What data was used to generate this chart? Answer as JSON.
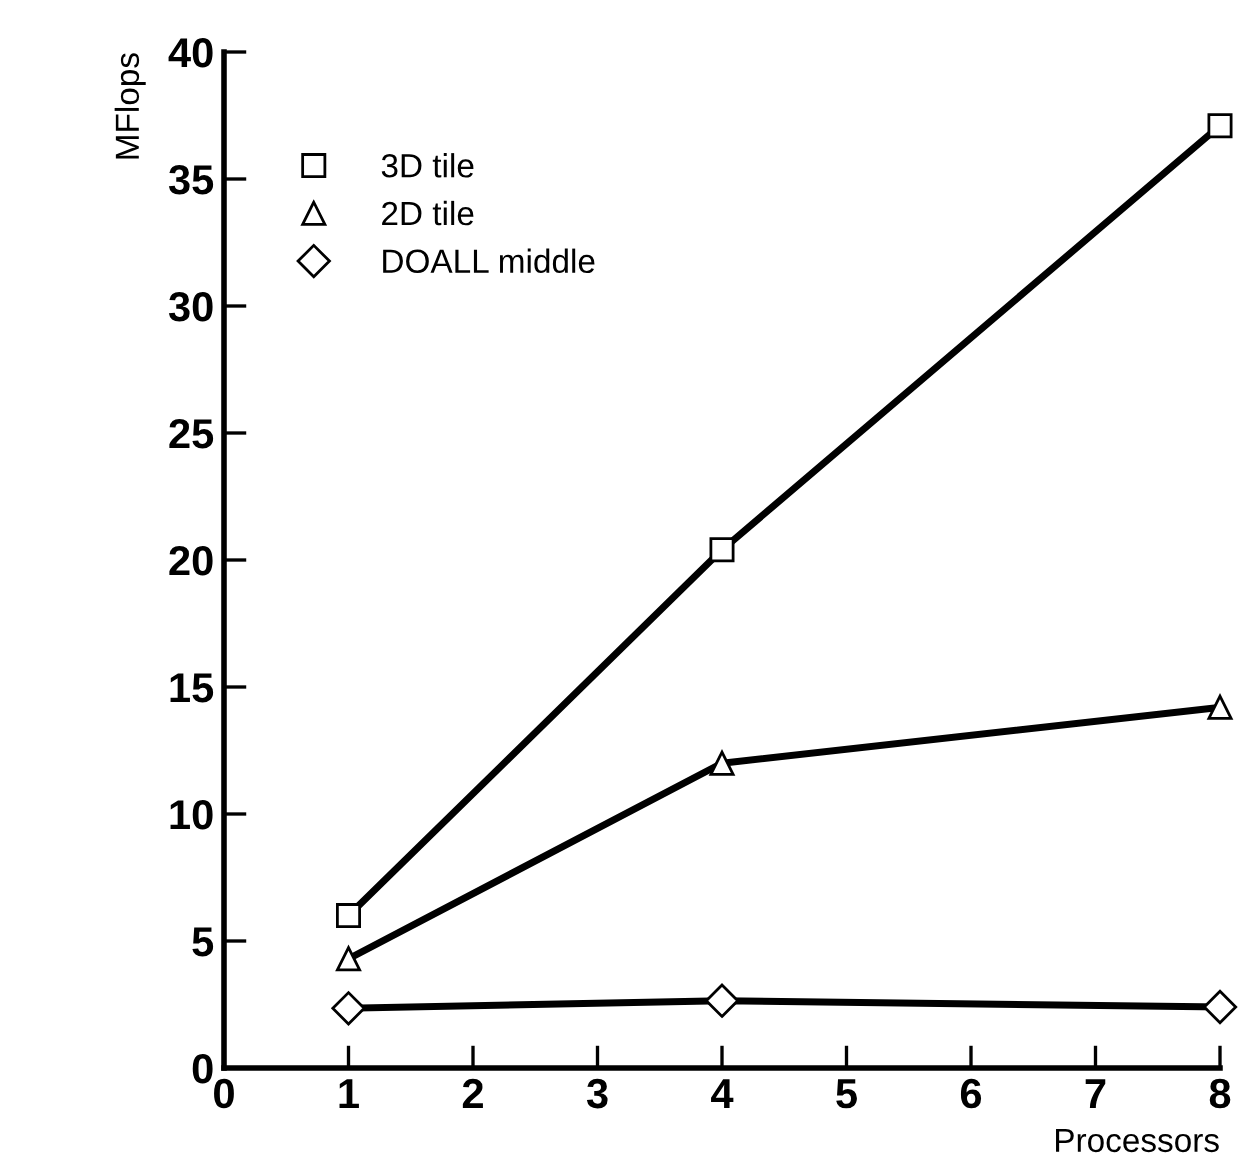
{
  "chart_data": {
    "type": "line",
    "xlabel": "Processors",
    "ylabel": "MFlops",
    "x": [
      1,
      4,
      8
    ],
    "series": [
      {
        "name": "3D tile",
        "color": "#000000",
        "marker": "square",
        "values": [
          6.0,
          20.4,
          37.1
        ]
      },
      {
        "name": "2D tile",
        "color": "#000000",
        "marker": "triangle",
        "values": [
          4.3,
          12.0,
          14.2
        ]
      },
      {
        "name": "DOALL middle",
        "color": "#000000",
        "marker": "diamond",
        "values": [
          2.35,
          2.65,
          2.4
        ]
      }
    ],
    "xlim": [
      0,
      8
    ],
    "ylim": [
      0,
      40
    ],
    "xticks": [
      0,
      1,
      2,
      3,
      4,
      5,
      6,
      7,
      8
    ],
    "yticks": [
      0,
      5,
      10,
      15,
      20,
      25,
      30,
      35,
      40
    ],
    "grid": false,
    "legend": "top left",
    "line_style": "solid"
  }
}
